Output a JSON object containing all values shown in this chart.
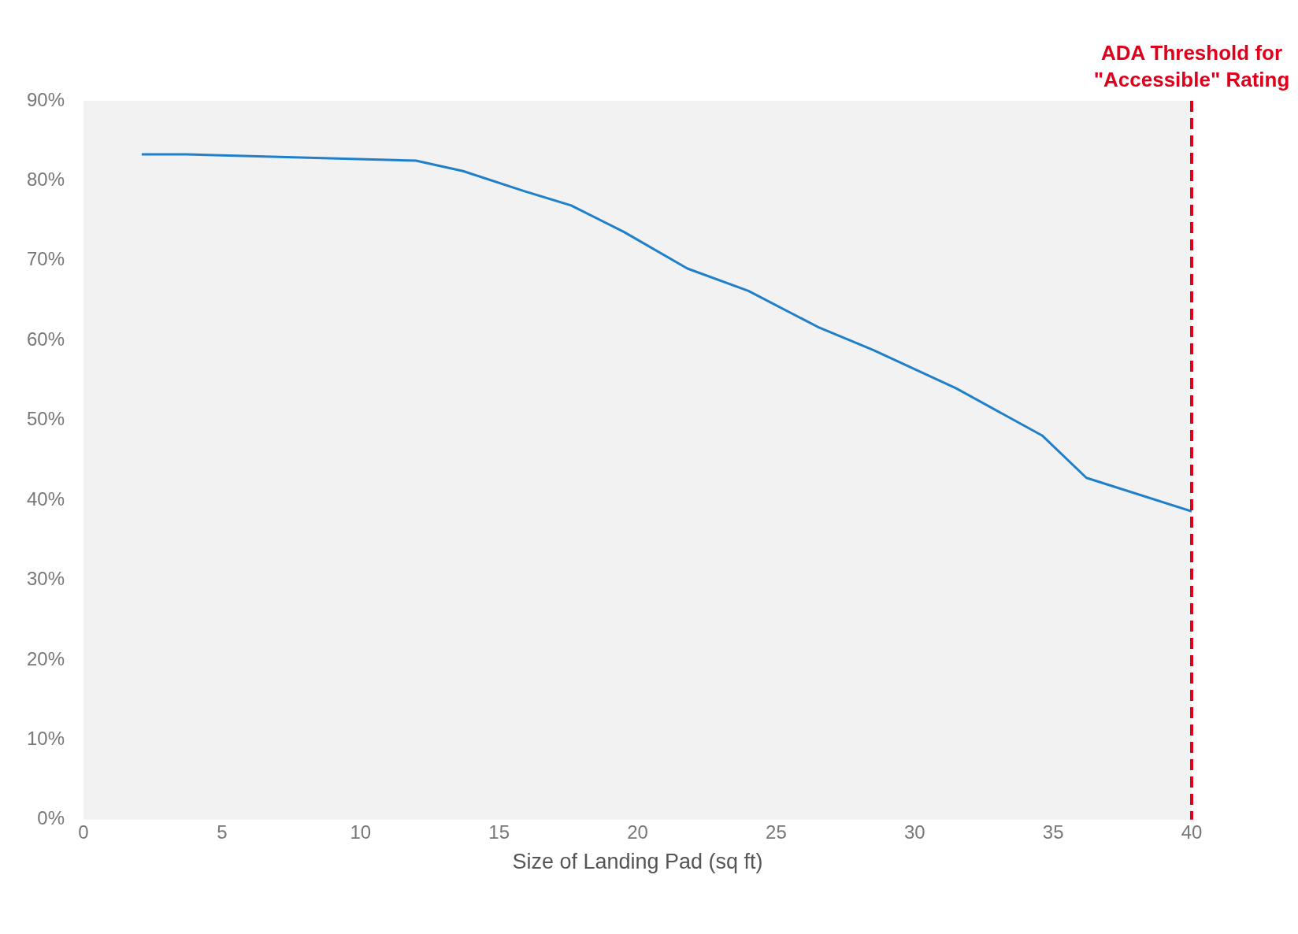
{
  "chart_data": {
    "type": "line",
    "xlabel": "Size of Landing Pad (sq ft)",
    "x": [
      2.1,
      3.7,
      12.0,
      13.7,
      15.9,
      17.6,
      19.5,
      21.8,
      24.0,
      26.5,
      28.5,
      31.5,
      34.6,
      36.2,
      40.0
    ],
    "series": [
      {
        "color": "#1f7fc9",
        "values": [
          83.3,
          83.3,
          82.5,
          81.2,
          78.7,
          76.9,
          73.6,
          69.0,
          66.2,
          61.7,
          58.8,
          54.0,
          48.1,
          42.8,
          38.6
        ]
      }
    ],
    "xlim": [
      0,
      40
    ],
    "xticks": [
      0,
      5,
      10,
      15,
      20,
      25,
      30,
      35,
      40
    ],
    "ylim": [
      0,
      90
    ],
    "yticks": [
      {
        "value": 0,
        "label": "0%"
      },
      {
        "value": 10,
        "label": "10%"
      },
      {
        "value": 20,
        "label": "20%"
      },
      {
        "value": 30,
        "label": "30%"
      },
      {
        "value": 40,
        "label": "40%"
      },
      {
        "value": 50,
        "label": "50%"
      },
      {
        "value": 60,
        "label": "60%"
      },
      {
        "value": 70,
        "label": "70%"
      },
      {
        "value": 80,
        "label": "80%"
      },
      {
        "value": 90,
        "label": "90%"
      }
    ],
    "ref_lines": [
      {
        "axis": "x",
        "value": 40,
        "label": "ADA Threshold for \"Accessible\" Rating",
        "color": "#e0001b",
        "line_style": "dashed"
      }
    ],
    "grid": false,
    "legend": false,
    "marker": "none",
    "line_style": "solid"
  }
}
